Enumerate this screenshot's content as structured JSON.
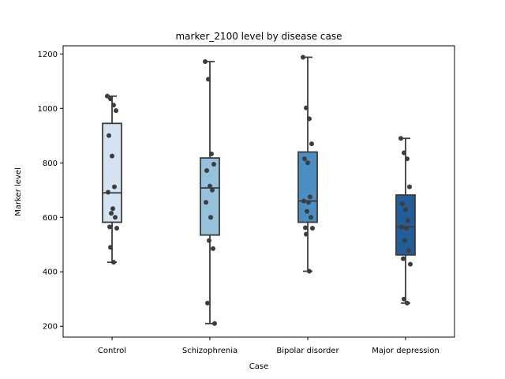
{
  "chart_data": {
    "type": "box",
    "title": "marker_2100 level by disease case",
    "xlabel": "Case",
    "ylabel": "Marker level",
    "ylim": [
      160,
      1230
    ],
    "yticks": [
      200,
      400,
      600,
      800,
      1000,
      1200
    ],
    "grid": false,
    "categories": [
      "Control",
      "Schizophrenia",
      "Bipolar disorder",
      "Major depression"
    ],
    "box_colors": [
      "#d4e3f2",
      "#95c1dc",
      "#4a8fc4",
      "#225d99"
    ],
    "edge_color": "#3d3d3d",
    "point_color": "#3d3d3d",
    "boxes": [
      {
        "category": "Control",
        "whisker_low": 435,
        "q1": 582,
        "median": 690,
        "q3": 945,
        "whisker_high": 1045
      },
      {
        "category": "Schizophrenia",
        "whisker_low": 210,
        "q1": 535,
        "median": 708,
        "q3": 818,
        "whisker_high": 1172
      },
      {
        "category": "Bipolar disorder",
        "whisker_low": 402,
        "q1": 582,
        "median": 660,
        "q3": 840,
        "whisker_high": 1188
      },
      {
        "category": "Major depression",
        "whisker_low": 285,
        "q1": 462,
        "median": 565,
        "q3": 682,
        "whisker_high": 890
      }
    ],
    "points": [
      [
        1045,
        1035,
        1012,
        992,
        900,
        825,
        712,
        692,
        632,
        615,
        600,
        565,
        560,
        490,
        435
      ],
      [
        1172,
        1107,
        833,
        795,
        772,
        715,
        700,
        655,
        600,
        515,
        485,
        285,
        210
      ],
      [
        1188,
        1002,
        962,
        870,
        815,
        800,
        675,
        660,
        655,
        622,
        600,
        562,
        560,
        538,
        402
      ],
      [
        890,
        837,
        815,
        712,
        650,
        628,
        588,
        565,
        560,
        515,
        478,
        448,
        428,
        300,
        285
      ]
    ]
  }
}
